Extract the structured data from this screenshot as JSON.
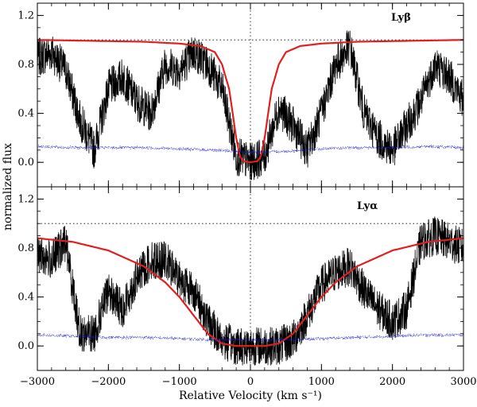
{
  "chart_data": {
    "type": "line",
    "xlabel": "Relative Velocity (km s⁻¹)",
    "ylabel": "normalized flux",
    "xlim": [
      -3000,
      3000
    ],
    "x_ticks": [
      -3000,
      -2000,
      -1000,
      0,
      1000,
      2000,
      3000
    ],
    "y_ticks": [
      0.0,
      0.4,
      0.8,
      1.2
    ],
    "panels": [
      {
        "label": "Lyβ",
        "ylim": [
          -0.2,
          1.3
        ],
        "reference_lines": {
          "y": 1.0,
          "x": 0
        },
        "series": [
          {
            "role": "observed flux",
            "color": "#000000",
            "x": [
              -3000,
              -2800,
              -2600,
              -2400,
              -2200,
              -2000,
              -1800,
              -1600,
              -1400,
              -1200,
              -1000,
              -800,
              -600,
              -400,
              -200,
              0,
              200,
              400,
              600,
              800,
              1000,
              1200,
              1400,
              1600,
              1800,
              2000,
              2200,
              2400,
              2600,
              2800,
              3000
            ],
            "y": [
              0.85,
              0.9,
              0.75,
              0.35,
              0.1,
              0.6,
              0.7,
              0.5,
              0.4,
              0.8,
              0.75,
              0.9,
              0.8,
              0.6,
              0.05,
              0.0,
              0.05,
              0.45,
              0.3,
              0.1,
              0.4,
              0.8,
              0.95,
              0.4,
              0.2,
              0.1,
              0.3,
              0.5,
              0.8,
              0.7,
              0.5
            ]
          },
          {
            "role": "model fit",
            "color": "#e02020",
            "x": [
              -3000,
              -2500,
              -2000,
              -1500,
              -1000,
              -700,
              -500,
              -400,
              -300,
              -200,
              -150,
              -100,
              0,
              100,
              150,
              200,
              300,
              400,
              500,
              700,
              1000,
              1500,
              2000,
              2500,
              3000
            ],
            "y": [
              1.0,
              0.995,
              0.99,
              0.985,
              0.97,
              0.95,
              0.9,
              0.8,
              0.6,
              0.2,
              0.05,
              0.01,
              0.0,
              0.01,
              0.05,
              0.2,
              0.6,
              0.8,
              0.9,
              0.95,
              0.97,
              0.985,
              0.99,
              0.995,
              1.0
            ]
          },
          {
            "role": "error",
            "color": "#1a1acc",
            "x": [
              -3000,
              -2500,
              -2000,
              -1500,
              -1000,
              -500,
              0,
              500,
              1000,
              1500,
              2000,
              2500,
              3000
            ],
            "y": [
              0.13,
              0.12,
              0.12,
              0.12,
              0.11,
              0.1,
              0.08,
              0.09,
              0.11,
              0.12,
              0.12,
              0.13,
              0.12
            ]
          }
        ]
      },
      {
        "label": "Lyα",
        "ylim": [
          -0.2,
          1.3
        ],
        "reference_lines": {
          "y": 1.0,
          "x": 0
        },
        "series": [
          {
            "role": "observed flux",
            "color": "#000000",
            "x": [
              -3000,
              -2800,
              -2600,
              -2400,
              -2200,
              -2000,
              -1800,
              -1600,
              -1400,
              -1200,
              -1000,
              -800,
              -600,
              -400,
              -200,
              0,
              200,
              400,
              600,
              800,
              1000,
              1200,
              1400,
              1600,
              1800,
              2000,
              2200,
              2400,
              2600,
              2800,
              3000
            ],
            "y": [
              0.75,
              0.7,
              0.85,
              0.1,
              0.1,
              0.45,
              0.3,
              0.55,
              0.7,
              0.7,
              0.55,
              0.45,
              0.2,
              0.05,
              0.0,
              0.0,
              0.0,
              0.0,
              0.05,
              0.25,
              0.5,
              0.6,
              0.65,
              0.45,
              0.3,
              0.2,
              0.3,
              0.85,
              0.9,
              0.85,
              0.8
            ]
          },
          {
            "role": "model fit",
            "color": "#e02020",
            "x": [
              -3000,
              -2500,
              -2000,
              -1500,
              -1200,
              -1000,
              -800,
              -600,
              -400,
              -200,
              0,
              200,
              400,
              600,
              800,
              1000,
              1200,
              1500,
              2000,
              2500,
              3000
            ],
            "y": [
              0.88,
              0.85,
              0.78,
              0.65,
              0.52,
              0.4,
              0.25,
              0.1,
              0.02,
              0.0,
              0.0,
              0.0,
              0.02,
              0.1,
              0.25,
              0.4,
              0.52,
              0.65,
              0.78,
              0.85,
              0.88
            ]
          },
          {
            "role": "error",
            "color": "#1a1acc",
            "x": [
              -3000,
              -2500,
              -2000,
              -1500,
              -1000,
              -500,
              0,
              500,
              1000,
              1500,
              2000,
              2500,
              3000
            ],
            "y": [
              0.09,
              0.08,
              0.07,
              0.07,
              0.06,
              0.05,
              0.05,
              0.05,
              0.06,
              0.07,
              0.08,
              0.09,
              0.09
            ]
          }
        ]
      }
    ]
  }
}
